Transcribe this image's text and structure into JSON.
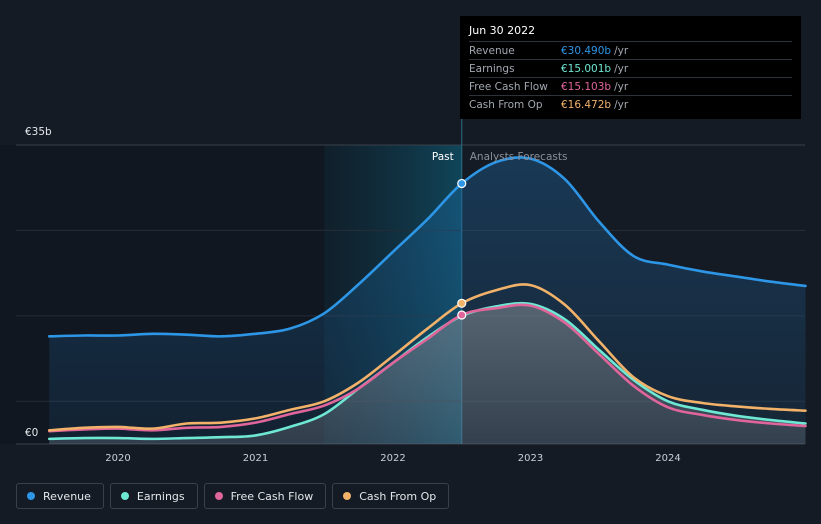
{
  "tooltip": {
    "date": "Jun 30 2022",
    "rows": [
      {
        "label": "Revenue",
        "value": "€30.490b",
        "unit": "/yr",
        "color": "#2d96e6"
      },
      {
        "label": "Earnings",
        "value": "€15.001b",
        "unit": "/yr",
        "color": "#6ee7d3"
      },
      {
        "label": "Free Cash Flow",
        "value": "€15.103b",
        "unit": "/yr",
        "color": "#e0659a"
      },
      {
        "label": "Cash From Op",
        "value": "€16.472b",
        "unit": "/yr",
        "color": "#f2b26a"
      }
    ]
  },
  "legend": [
    {
      "label": "Revenue",
      "color": "#2d96e6"
    },
    {
      "label": "Earnings",
      "color": "#6ee7d3"
    },
    {
      "label": "Free Cash Flow",
      "color": "#e0659a"
    },
    {
      "label": "Cash From Op",
      "color": "#f2b26a"
    }
  ],
  "chart_data": {
    "type": "line",
    "y_top_label": "€35b",
    "y_bottom_label": "€0",
    "ylim": [
      0,
      35
    ],
    "xlim": [
      2019.5,
      2025.0
    ],
    "x_ticks": [
      "2020",
      "2021",
      "2022",
      "2023",
      "2024"
    ],
    "x_tick_values": [
      2020,
      2021,
      2022,
      2023,
      2024
    ],
    "past_label": "Past",
    "forecast_label": "Analysts Forecasts",
    "split_x": 2022.5,
    "highlight_start_x": 2021.5,
    "series": [
      {
        "name": "Revenue",
        "color": "#2d96e6",
        "points": [
          [
            2019.5,
            12.6
          ],
          [
            2019.75,
            12.7
          ],
          [
            2020.0,
            12.7
          ],
          [
            2020.25,
            12.9
          ],
          [
            2020.5,
            12.8
          ],
          [
            2020.75,
            12.6
          ],
          [
            2021.0,
            12.9
          ],
          [
            2021.25,
            13.5
          ],
          [
            2021.5,
            15.3
          ],
          [
            2021.75,
            18.7
          ],
          [
            2022.0,
            22.5
          ],
          [
            2022.25,
            26.3
          ],
          [
            2022.5,
            30.49
          ],
          [
            2022.75,
            33.0
          ],
          [
            2023.0,
            33.4
          ],
          [
            2023.25,
            31.0
          ],
          [
            2023.5,
            26.0
          ],
          [
            2023.75,
            22.0
          ],
          [
            2024.0,
            21.0
          ],
          [
            2024.25,
            20.2
          ],
          [
            2024.5,
            19.6
          ],
          [
            2024.75,
            19.0
          ],
          [
            2025.0,
            18.5
          ]
        ]
      },
      {
        "name": "Earnings",
        "color": "#6ee7d3",
        "points": [
          [
            2019.5,
            0.6
          ],
          [
            2019.75,
            0.7
          ],
          [
            2020.0,
            0.7
          ],
          [
            2020.25,
            0.6
          ],
          [
            2020.5,
            0.7
          ],
          [
            2020.75,
            0.8
          ],
          [
            2021.0,
            1.0
          ],
          [
            2021.25,
            2.0
          ],
          [
            2021.5,
            3.5
          ],
          [
            2021.75,
            6.5
          ],
          [
            2022.0,
            9.5
          ],
          [
            2022.25,
            12.5
          ],
          [
            2022.5,
            15.0
          ],
          [
            2022.75,
            16.1
          ],
          [
            2023.0,
            16.4
          ],
          [
            2023.25,
            14.6
          ],
          [
            2023.5,
            11.0
          ],
          [
            2023.75,
            7.5
          ],
          [
            2024.0,
            5.0
          ],
          [
            2024.25,
            4.0
          ],
          [
            2024.5,
            3.3
          ],
          [
            2024.75,
            2.8
          ],
          [
            2025.0,
            2.4
          ]
        ]
      },
      {
        "name": "Free Cash Flow",
        "color": "#e0659a",
        "points": [
          [
            2019.5,
            1.5
          ],
          [
            2019.75,
            1.7
          ],
          [
            2020.0,
            1.8
          ],
          [
            2020.25,
            1.6
          ],
          [
            2020.5,
            1.9
          ],
          [
            2020.75,
            2.0
          ],
          [
            2021.0,
            2.5
          ],
          [
            2021.25,
            3.5
          ],
          [
            2021.5,
            4.5
          ],
          [
            2021.75,
            6.5
          ],
          [
            2022.0,
            9.5
          ],
          [
            2022.25,
            12.3
          ],
          [
            2022.5,
            15.1
          ],
          [
            2022.75,
            15.9
          ],
          [
            2023.0,
            16.2
          ],
          [
            2023.25,
            14.2
          ],
          [
            2023.5,
            10.5
          ],
          [
            2023.75,
            6.8
          ],
          [
            2024.0,
            4.3
          ],
          [
            2024.25,
            3.4
          ],
          [
            2024.5,
            2.8
          ],
          [
            2024.75,
            2.4
          ],
          [
            2025.0,
            2.1
          ]
        ]
      },
      {
        "name": "Cash From Op",
        "color": "#f2b26a",
        "points": [
          [
            2019.5,
            1.6
          ],
          [
            2019.75,
            1.9
          ],
          [
            2020.0,
            2.0
          ],
          [
            2020.25,
            1.8
          ],
          [
            2020.5,
            2.4
          ],
          [
            2020.75,
            2.5
          ],
          [
            2021.0,
            3.0
          ],
          [
            2021.25,
            4.0
          ],
          [
            2021.5,
            5.0
          ],
          [
            2021.75,
            7.2
          ],
          [
            2022.0,
            10.3
          ],
          [
            2022.25,
            13.5
          ],
          [
            2022.5,
            16.47
          ],
          [
            2022.75,
            18.0
          ],
          [
            2023.0,
            18.6
          ],
          [
            2023.25,
            16.3
          ],
          [
            2023.5,
            12.0
          ],
          [
            2023.75,
            7.8
          ],
          [
            2024.0,
            5.6
          ],
          [
            2024.25,
            4.8
          ],
          [
            2024.5,
            4.4
          ],
          [
            2024.75,
            4.1
          ],
          [
            2025.0,
            3.9
          ]
        ]
      }
    ]
  }
}
